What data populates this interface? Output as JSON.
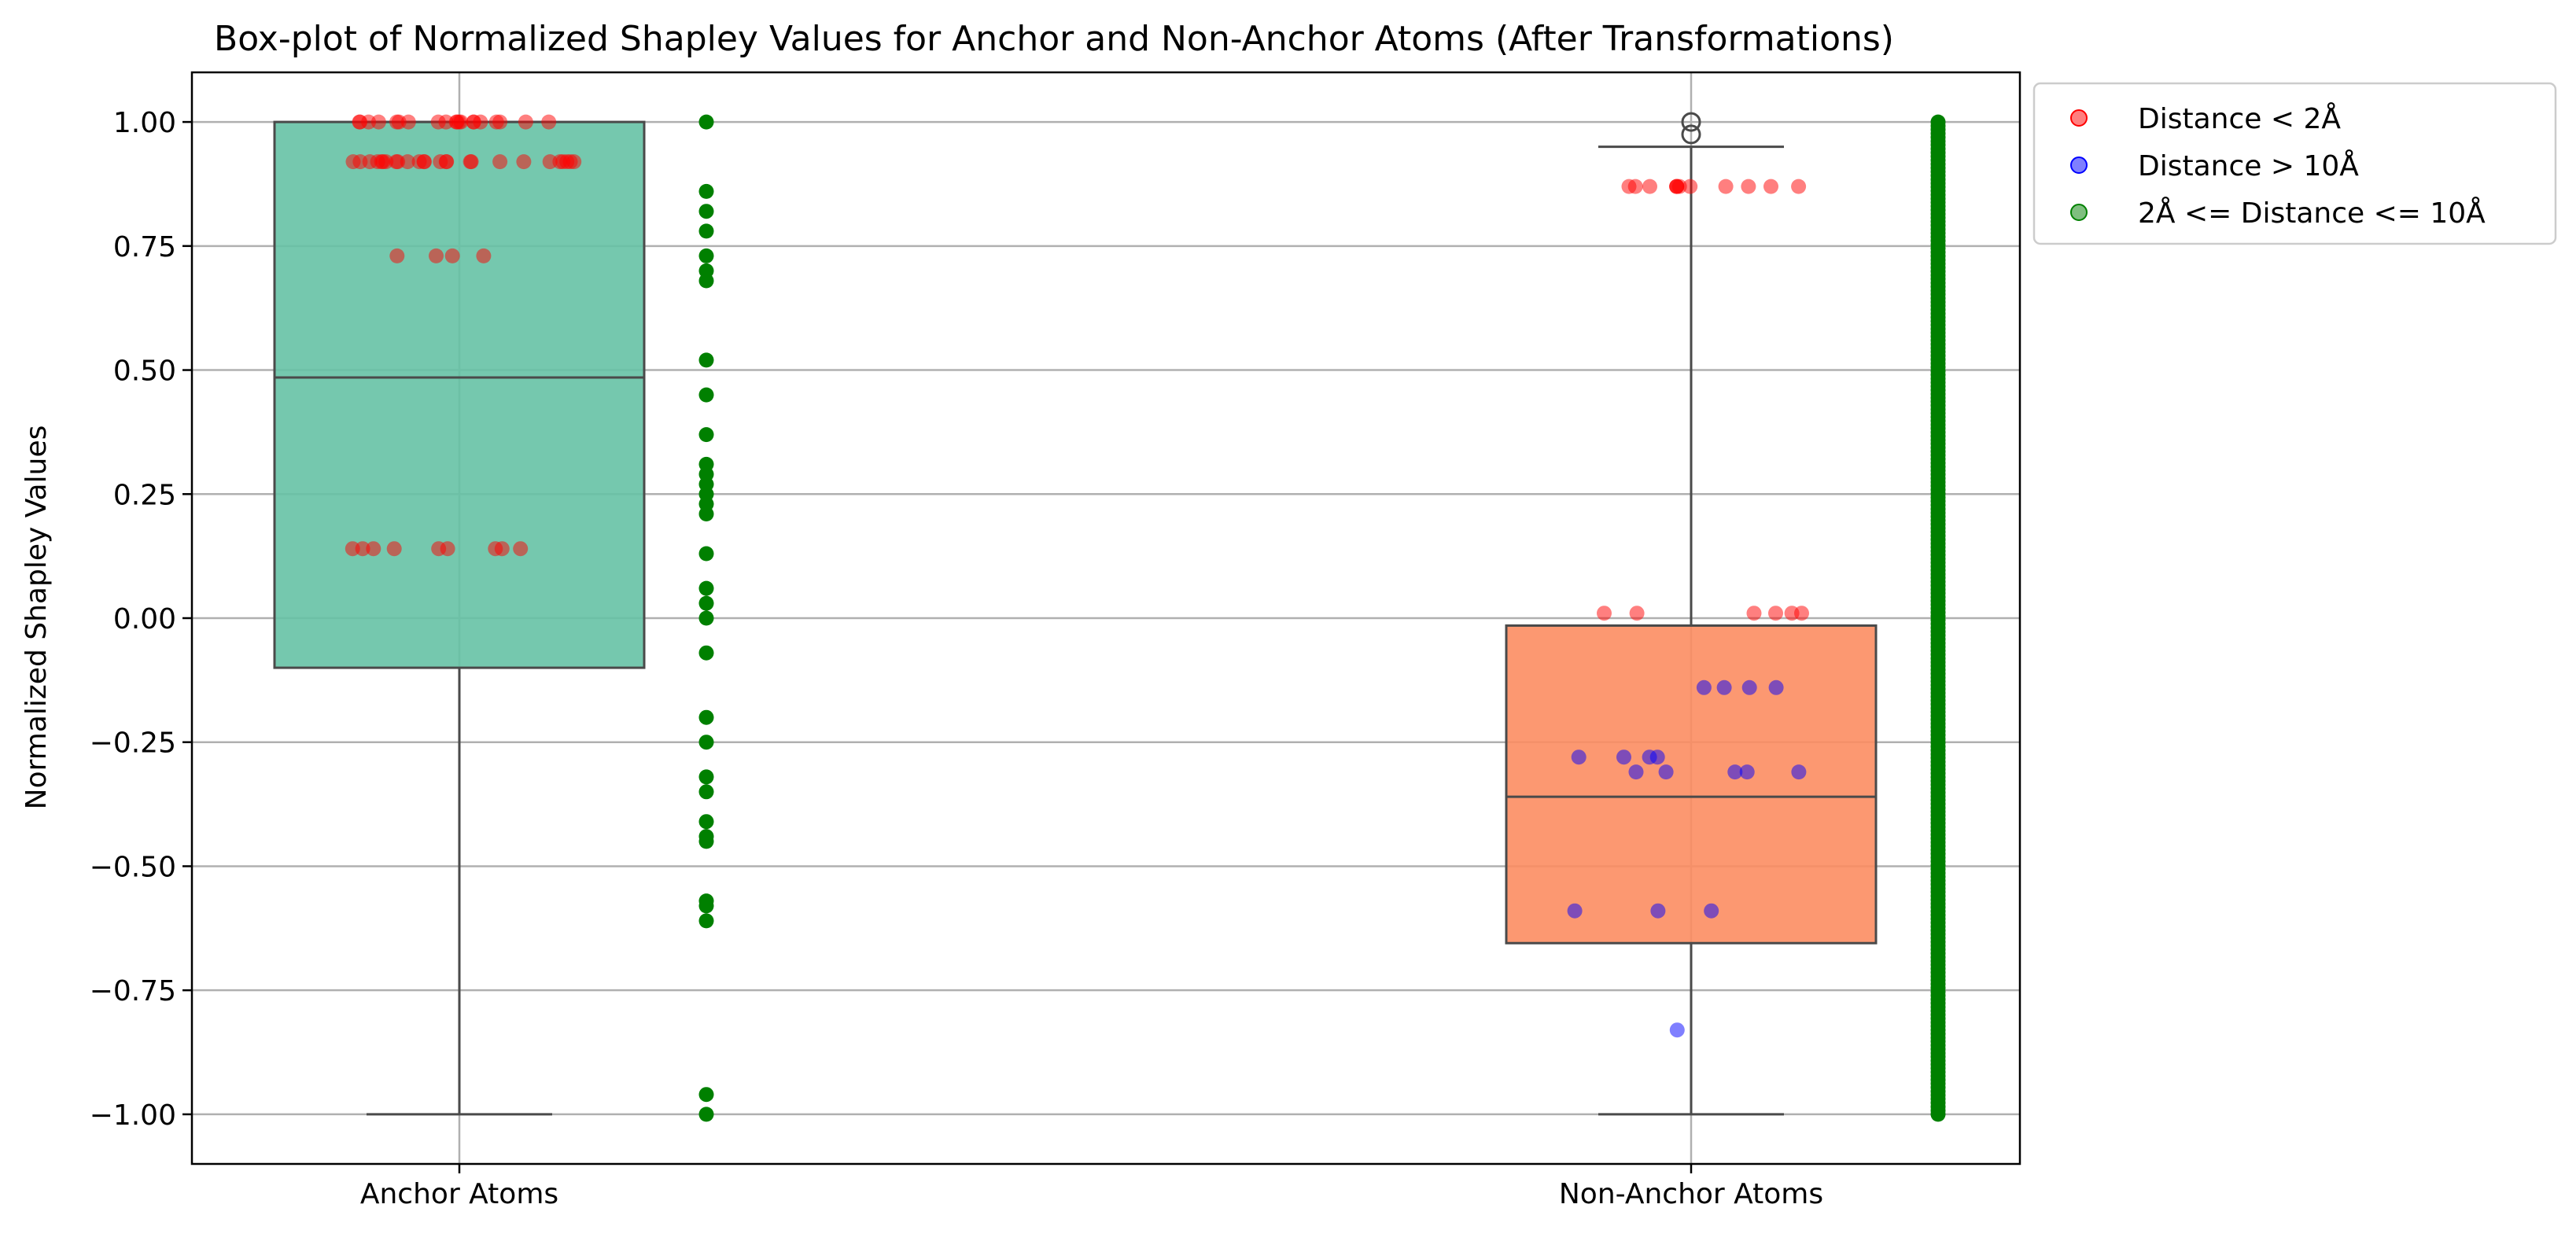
{
  "chart_data": {
    "type": "box",
    "title": "Box-plot of Normalized Shapley Values for Anchor and Non-Anchor Atoms (After Transformations)",
    "xlabel": "",
    "ylabel": "Normalized Shapley Values",
    "categories": [
      "Anchor Atoms",
      "Non-Anchor Atoms"
    ],
    "ylim": [
      -1.1,
      1.1
    ],
    "yticks": [
      1.0,
      0.75,
      0.5,
      0.25,
      0.0,
      -0.25,
      -0.5,
      -0.75,
      -1.0
    ],
    "ytick_labels": [
      "1.00",
      "0.75",
      "0.50",
      "0.25",
      "0.00",
      "−0.25",
      "−0.50",
      "−0.75",
      "−1.00"
    ],
    "grid": true,
    "legend_position": "outside top-right",
    "boxes": [
      {
        "category": "Anchor Atoms",
        "q1": -0.1,
        "median": 0.485,
        "q3": 1.0,
        "whisker_low": -1.0,
        "whisker_high": 1.0,
        "fliers": [],
        "color": "#66c2a5"
      },
      {
        "category": "Non-Anchor Atoms",
        "q1": -0.655,
        "median": -0.36,
        "q3": -0.015,
        "whisker_low": -1.0,
        "whisker_high": 0.95,
        "fliers": [
          1.0,
          0.975
        ],
        "color": "#fc8d62"
      }
    ],
    "series": [
      {
        "name": "Distance < 2Å",
        "color": "#ff0000",
        "alpha": 0.5,
        "points": [
          {
            "category": "Anchor Atoms",
            "values": [
              1.0,
              1.0,
              1.0,
              1.0,
              1.0,
              1.0,
              1.0,
              1.0,
              1.0,
              1.0,
              1.0,
              1.0,
              1.0,
              1.0,
              1.0,
              1.0,
              1.0,
              1.0,
              1.0,
              1.0,
              0.92,
              0.92,
              0.92,
              0.92,
              0.92,
              0.92,
              0.92,
              0.92,
              0.92,
              0.92,
              0.92,
              0.92,
              0.92,
              0.92,
              0.92,
              0.92,
              0.92,
              0.92,
              0.92,
              0.92,
              0.92,
              0.92,
              0.92,
              0.92,
              0.92,
              0.92,
              0.73,
              0.73,
              0.73,
              0.73,
              0.14,
              0.14,
              0.14,
              0.14,
              0.14,
              0.14,
              0.14,
              0.14,
              0.14
            ]
          },
          {
            "category": "Non-Anchor Atoms",
            "values": [
              0.87,
              0.87,
              0.87,
              0.87,
              0.87,
              0.87,
              0.87,
              0.87,
              0.87,
              0.87,
              0.87,
              0.87,
              0.01,
              0.01,
              0.01,
              0.01,
              0.01,
              0.01
            ]
          }
        ]
      },
      {
        "name": "Distance > 10Å",
        "color": "#0000ff",
        "alpha": 0.5,
        "points": [
          {
            "category": "Non-Anchor Atoms",
            "values": [
              -0.14,
              -0.14,
              -0.14,
              -0.14,
              -0.28,
              -0.28,
              -0.28,
              -0.28,
              -0.31,
              -0.31,
              -0.31,
              -0.31,
              -0.31,
              -0.59,
              -0.59,
              -0.59,
              -0.83
            ]
          }
        ]
      },
      {
        "name": "2Å <= Distance <= 10Å",
        "color": "#008000",
        "alpha": 0.5,
        "points": [
          {
            "category": "Anchor Atoms",
            "values": [
              1.0,
              0.86,
              0.82,
              0.78,
              0.73,
              0.7,
              0.68,
              0.52,
              0.45,
              0.37,
              0.31,
              0.29,
              0.27,
              0.25,
              0.23,
              0.21,
              0.13,
              0.06,
              0.03,
              0.0,
              -0.07,
              -0.2,
              -0.25,
              -0.32,
              -0.35,
              -0.41,
              -0.44,
              -0.45,
              -0.57,
              -0.58,
              -0.61,
              -0.96,
              -1.0
            ]
          },
          {
            "category": "Non-Anchor Atoms",
            "values": []
          }
        ]
      }
    ],
    "non_anchor_green_range": [
      -1.0,
      1.0
    ],
    "non_anchor_green_count": 260
  }
}
